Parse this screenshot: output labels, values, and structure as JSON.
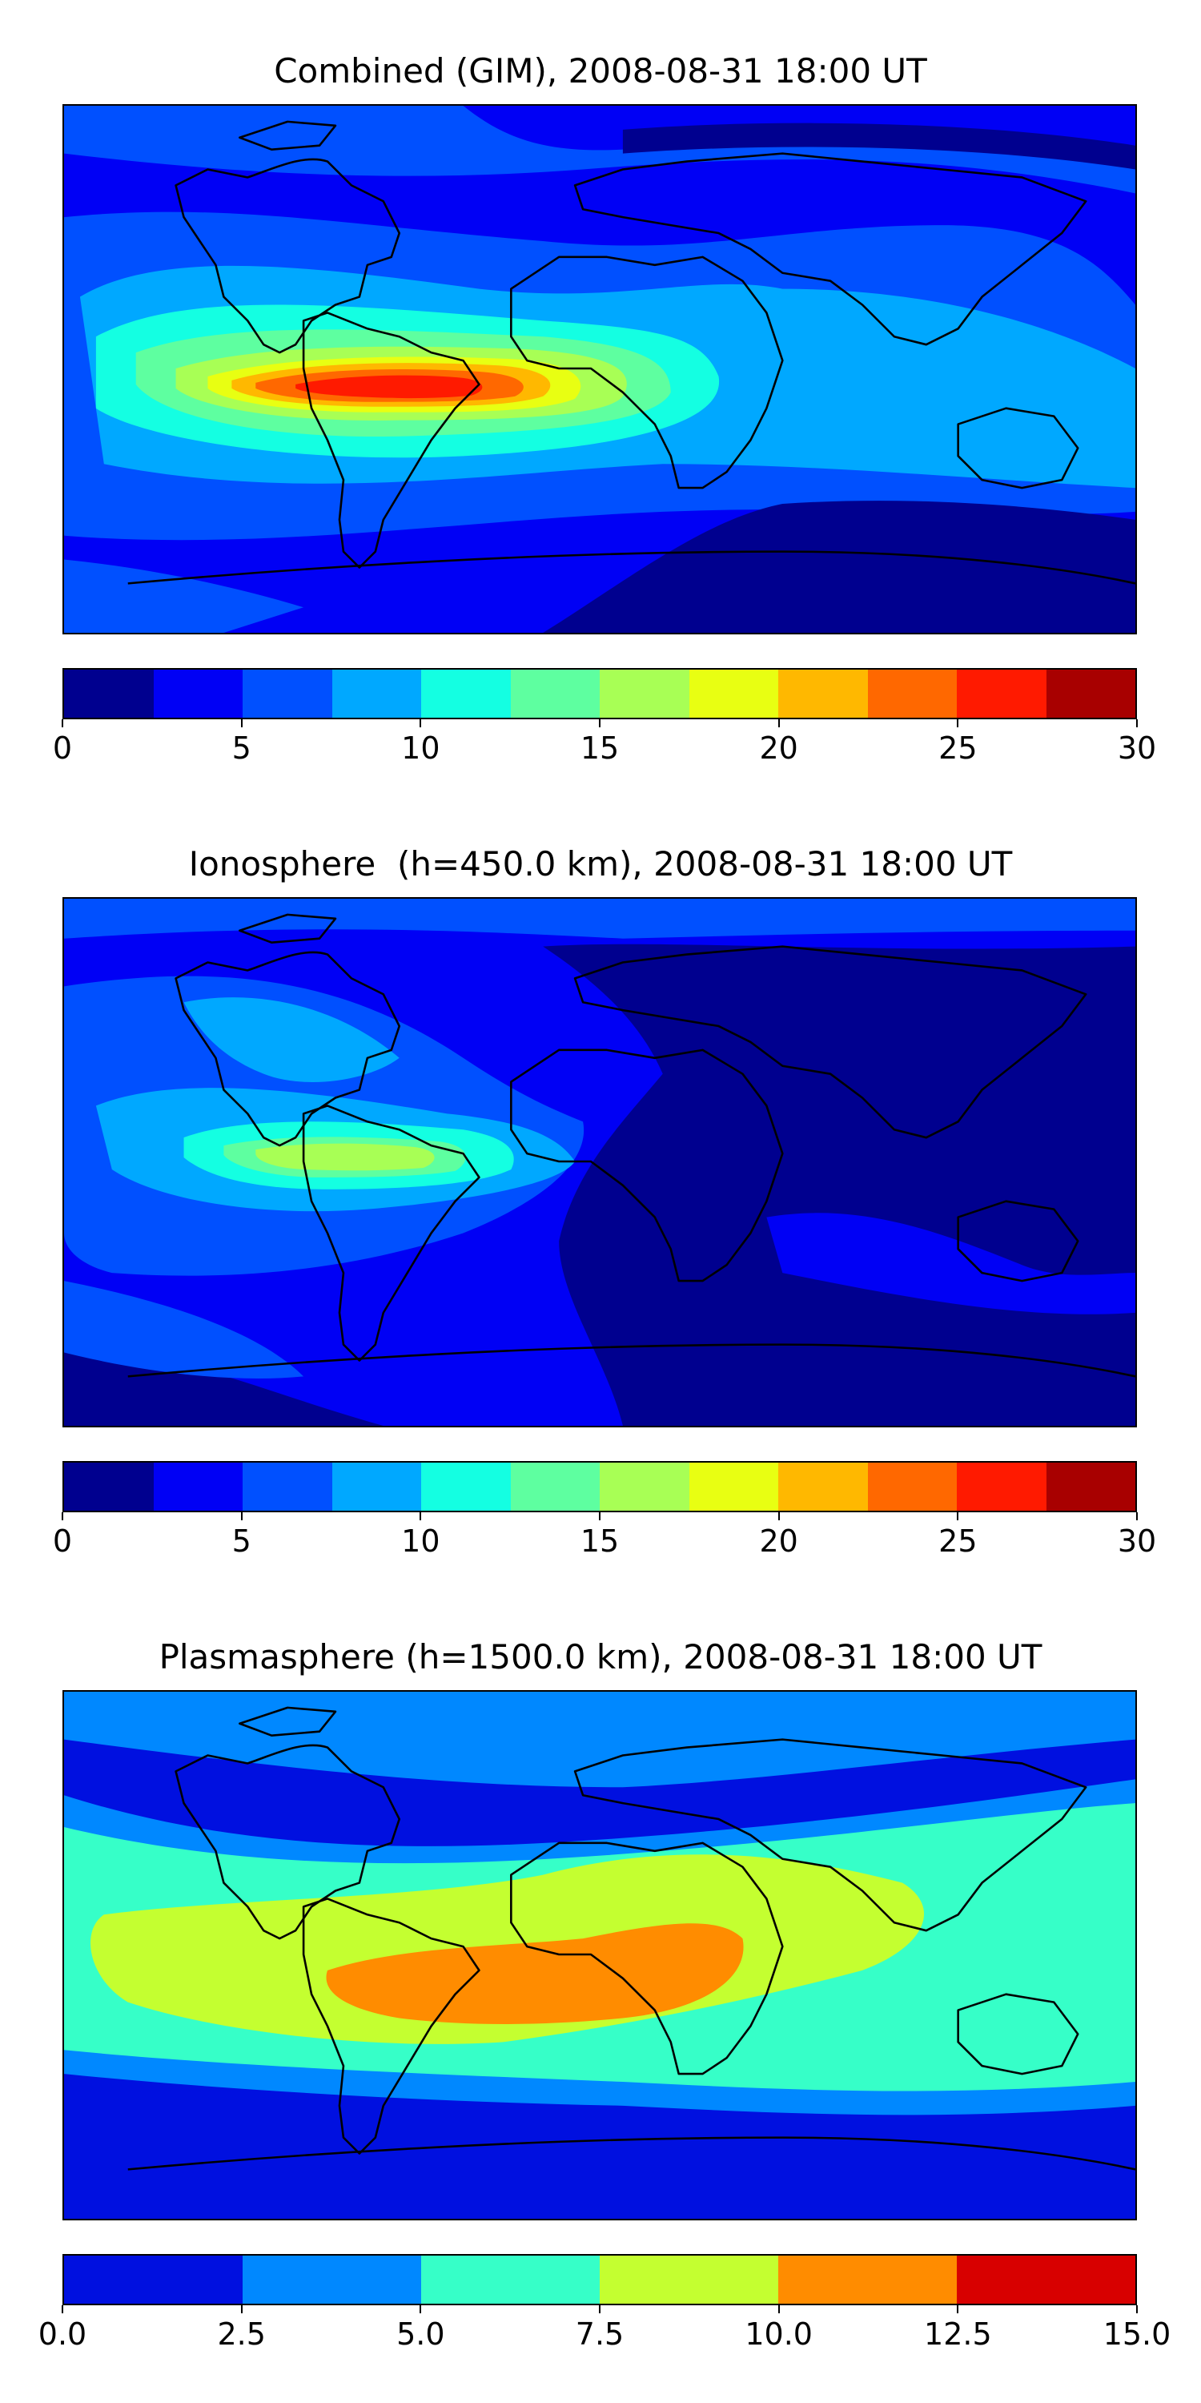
{
  "panels": [
    {
      "title": "Combined (GIM), 2008-08-31 18:00 UT",
      "colorbar": {
        "colors": [
          "#00008f",
          "#0000f5",
          "#0050ff",
          "#00a8ff",
          "#14ffe2",
          "#5effa0",
          "#a8ff55",
          "#e8ff12",
          "#ffb800",
          "#ff6800",
          "#ff1a00",
          "#a80000"
        ],
        "ticks": [
          "0",
          "5",
          "10",
          "15",
          "20",
          "25",
          "30"
        ]
      }
    },
    {
      "title": "Ionosphere  (h=450.0 km), 2008-08-31 18:00 UT",
      "colorbar": {
        "colors": [
          "#00008f",
          "#0000f5",
          "#0050ff",
          "#00a8ff",
          "#14ffe2",
          "#5effa0",
          "#a8ff55",
          "#e8ff12",
          "#ffb800",
          "#ff6800",
          "#ff1a00",
          "#a80000"
        ],
        "ticks": [
          "0",
          "5",
          "10",
          "15",
          "20",
          "25",
          "30"
        ]
      }
    },
    {
      "title": "Plasmasphere (h=1500.0 km), 2008-08-31 18:00 UT",
      "colorbar": {
        "colors": [
          "#0010e0",
          "#0088ff",
          "#36ffc8",
          "#c4ff30",
          "#ff8c00",
          "#d80000"
        ],
        "ticks": [
          "0.0",
          "2.5",
          "5.0",
          "7.5",
          "10.0",
          "12.5",
          "15.0"
        ]
      }
    }
  ]
}
